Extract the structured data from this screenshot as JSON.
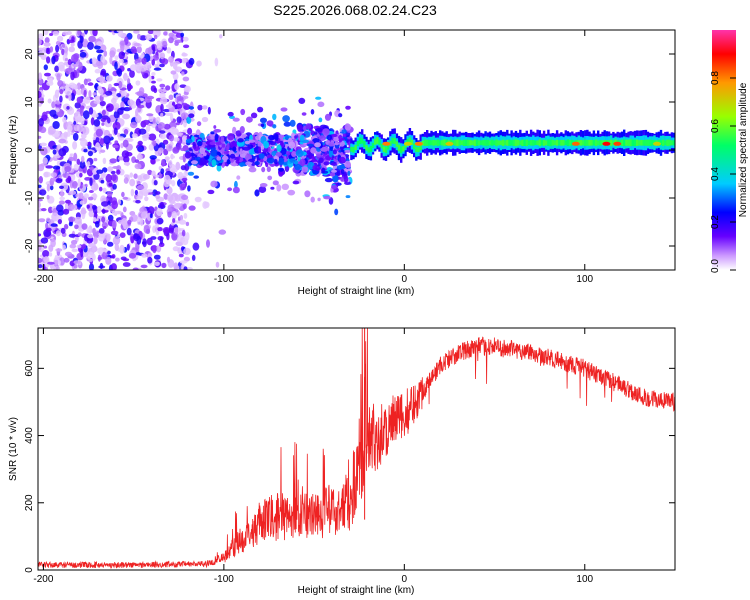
{
  "figure_title": "S225.2026.068.02.24.C23",
  "chart_data": [
    {
      "type": "heatmap",
      "title": "S225.2026.068.02.24.C23",
      "xlabel": "Height of straight line (km)",
      "ylabel": "Frequency (Hz)",
      "xlim": [
        -203,
        150
      ],
      "ylim": [
        -25,
        25
      ],
      "xticks": [
        -200,
        -100,
        0,
        100
      ],
      "yticks": [
        -20,
        -10,
        0,
        10,
        20
      ],
      "colorbar": {
        "label": "Normalized spectral amplitude",
        "range": [
          0,
          1
        ],
        "ticks": [
          0.0,
          0.2,
          0.4,
          0.6,
          0.8
        ],
        "colors": [
          "#ffffff",
          "#cc99ff",
          "#6600ff",
          "#0000ff",
          "#00ccff",
          "#00ff66",
          "#99ff00",
          "#ff9900",
          "#ff0000",
          "#ff33aa"
        ]
      },
      "regions": [
        {
          "x": [
            -203,
            -120
          ],
          "freq_spread_hz": 25,
          "amplitude": 0.1,
          "description": "diffuse noise"
        },
        {
          "x": [
            -120,
            -30
          ],
          "freq_spread_hz": 5,
          "amplitude": 0.25,
          "description": "clustered band"
        },
        {
          "x": [
            -30,
            150
          ],
          "center_freq_hz": 1.5,
          "amplitude": 0.5,
          "description": "narrow band"
        }
      ]
    },
    {
      "type": "line",
      "xlabel": "Height of straight line (km)",
      "ylabel": "SNR (10 * v/v)",
      "xlim": [
        -203,
        150
      ],
      "ylim": [
        0,
        720
      ],
      "xticks": [
        -200,
        -100,
        0,
        100
      ],
      "yticks": [
        0,
        200,
        400,
        600
      ],
      "series": [
        {
          "name": "SNR",
          "color": "#ee2222",
          "x": [
            -203,
            -150,
            -110,
            -100,
            -95,
            -90,
            -85,
            -80,
            -75,
            -70,
            -60,
            -50,
            -40,
            -35,
            -30,
            -27,
            -25,
            -22,
            -20,
            -15,
            -10,
            -5,
            0,
            10,
            20,
            30,
            40,
            50,
            60,
            70,
            80,
            90,
            100,
            110,
            120,
            130,
            140,
            150
          ],
          "y": [
            15,
            15,
            18,
            30,
            55,
            75,
            95,
            115,
            125,
            130,
            130,
            135,
            145,
            150,
            175,
            220,
            280,
            350,
            380,
            400,
            420,
            440,
            460,
            530,
            610,
            645,
            665,
            665,
            655,
            650,
            630,
            615,
            600,
            570,
            550,
            520,
            505,
            500
          ]
        }
      ]
    }
  ]
}
